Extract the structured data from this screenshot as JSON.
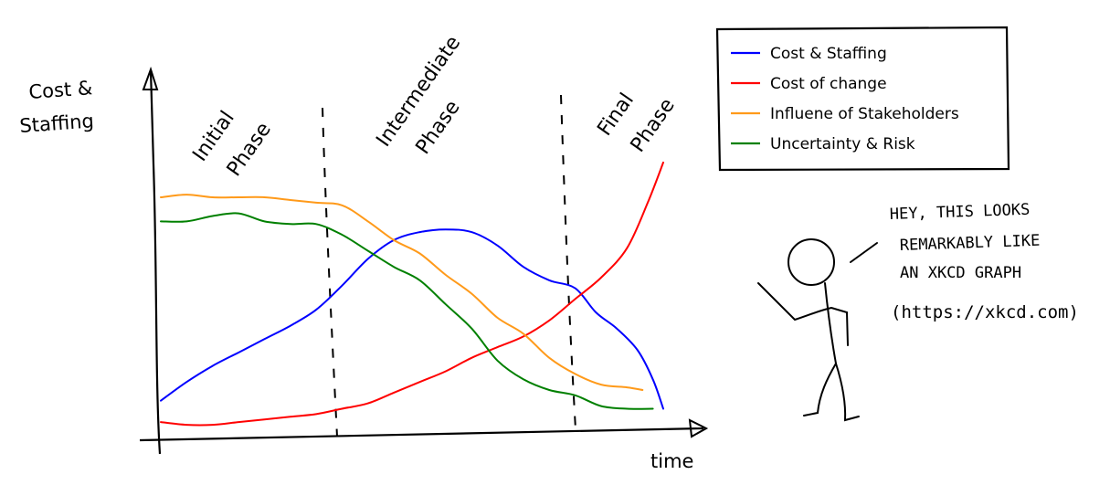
{
  "chart_data": {
    "type": "line",
    "title": "",
    "xlabel": "time",
    "ylabel": "Cost & Staffing",
    "xlim": [
      0,
      100
    ],
    "ylim": [
      0,
      100
    ],
    "grid": false,
    "legend_position": "top-right",
    "phases": [
      {
        "label": "Initial Phase",
        "start": 0,
        "end": 33
      },
      {
        "label": "Intermediate Phase",
        "start": 33,
        "end": 80
      },
      {
        "label": "Final Phase",
        "start": 80,
        "end": 100
      }
    ],
    "series": [
      {
        "name": "Cost & Staffing",
        "color": "#0000ff",
        "x": [
          0,
          5,
          10,
          15,
          20,
          25,
          30,
          35,
          40,
          45,
          50,
          55,
          60,
          65,
          70,
          75,
          80,
          84,
          88,
          92,
          95,
          97
        ],
        "y": [
          10,
          17,
          23,
          28,
          33,
          38,
          44,
          53,
          63,
          70,
          73,
          74,
          73,
          68,
          60,
          55,
          52,
          43,
          37,
          29,
          18,
          7
        ]
      },
      {
        "name": "Cost of change",
        "color": "#ff0000",
        "x": [
          0,
          5,
          10,
          15,
          20,
          25,
          30,
          35,
          40,
          45,
          50,
          55,
          60,
          65,
          70,
          75,
          80,
          85,
          90,
          94,
          97
        ],
        "y": [
          2,
          1,
          1,
          2,
          3,
          4,
          5,
          7,
          9,
          13,
          17,
          21,
          26,
          30,
          34,
          40,
          48,
          56,
          67,
          84,
          99
        ]
      },
      {
        "name": "Influene of Stakeholders",
        "color": "#ff9a1a",
        "x": [
          0,
          5,
          10,
          15,
          20,
          25,
          30,
          35,
          40,
          45,
          50,
          55,
          60,
          65,
          70,
          75,
          80,
          85,
          90,
          93
        ],
        "y": [
          86,
          87,
          86,
          86,
          86,
          85,
          84,
          83,
          77,
          70,
          65,
          57,
          50,
          41,
          35,
          26,
          20,
          16,
          15,
          14
        ]
      },
      {
        "name": "Uncertainty & Risk",
        "color": "#008000",
        "x": [
          0,
          5,
          10,
          15,
          20,
          25,
          30,
          35,
          40,
          45,
          50,
          55,
          60,
          65,
          70,
          75,
          80,
          85,
          90,
          95
        ],
        "y": [
          77,
          77,
          79,
          80,
          77,
          76,
          76,
          72,
          66,
          60,
          55,
          46,
          37,
          25,
          18,
          14,
          12,
          8,
          7,
          7
        ]
      }
    ]
  },
  "legend": {
    "items": [
      {
        "label": "Cost & Staffing",
        "color": "#0000ff"
      },
      {
        "label": "Cost of change",
        "color": "#ff0000"
      },
      {
        "label": "Influene of Stakeholders",
        "color": "#ff9a1a"
      },
      {
        "label": "Uncertainty & Risk",
        "color": "#008000"
      }
    ]
  },
  "axes": {
    "y_label_line1": "Cost &",
    "y_label_line2": "Staffing",
    "x_label": "time"
  },
  "phase_labels": {
    "initial_1": "Initial",
    "initial_2": "Phase",
    "intermediate_1": "Intermediate",
    "intermediate_2": "Phase",
    "final_1": "Final",
    "final_2": "Phase"
  },
  "speech": {
    "line1": "HEY, THIS LOOKS",
    "line2": "REMARKABLY LIKE",
    "line3": "AN XKCD GRAPH",
    "line4": "(https://xkcd.com)"
  }
}
